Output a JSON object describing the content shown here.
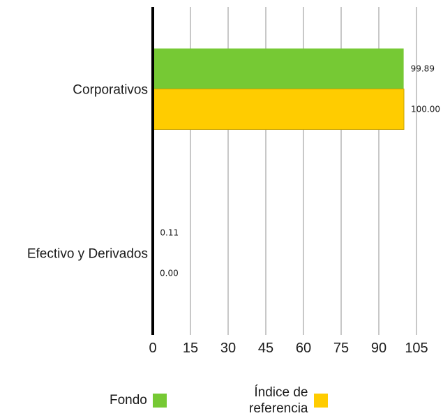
{
  "chart_data": {
    "type": "bar",
    "orientation": "horizontal",
    "categories": [
      "Corporativos",
      "Efectivo y Derivados"
    ],
    "series": [
      {
        "name": "Fondo",
        "color": "#76C934",
        "values": [
          99.89,
          0.11
        ],
        "labels": [
          "99.89",
          "0.11"
        ]
      },
      {
        "name": "Índice de referencia",
        "color": "#FFCC00",
        "values": [
          100.0,
          0.0
        ],
        "labels": [
          "100.00",
          "0.00"
        ]
      }
    ],
    "xlim": [
      0,
      105
    ],
    "xticks": [
      "0",
      "15",
      "30",
      "45",
      "60",
      "75",
      "90",
      "105"
    ],
    "grid": true,
    "legend_position": "bottom",
    "title": "",
    "xlabel": "",
    "ylabel": ""
  },
  "legend": {
    "fondo_label": "Fondo",
    "indice_label_line1": "Índice de",
    "indice_label_line2": "referencia"
  }
}
